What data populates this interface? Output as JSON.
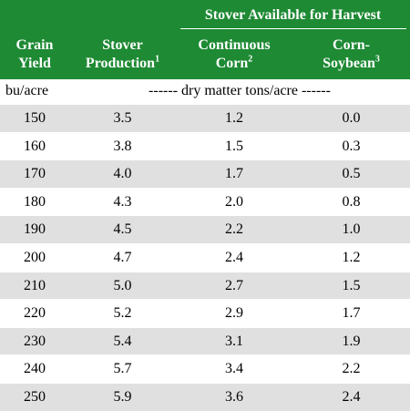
{
  "header": {
    "span_title": "Stover Available for Harvest",
    "col1": [
      "Grain",
      "Yield"
    ],
    "col2": [
      "Stover",
      "Production",
      "1"
    ],
    "col3": [
      "Continuous",
      "Corn",
      "2"
    ],
    "col4": [
      "Corn-",
      "Soybean",
      "3"
    ]
  },
  "units": {
    "yield_unit": "bu/acre",
    "tons_unit": "------ dry matter tons/acre ------"
  },
  "rows": [
    [
      "150",
      "3.5",
      "1.2",
      "0.0"
    ],
    [
      "160",
      "3.8",
      "1.5",
      "0.3"
    ],
    [
      "170",
      "4.0",
      "1.7",
      "0.5"
    ],
    [
      "180",
      "4.3",
      "2.0",
      "0.8"
    ],
    [
      "190",
      "4.5",
      "2.2",
      "1.0"
    ],
    [
      "200",
      "4.7",
      "2.4",
      "1.2"
    ],
    [
      "210",
      "5.0",
      "2.7",
      "1.5"
    ],
    [
      "220",
      "5.2",
      "2.9",
      "1.7"
    ],
    [
      "230",
      "5.4",
      "3.1",
      "1.9"
    ],
    [
      "240",
      "5.7",
      "3.4",
      "2.2"
    ],
    [
      "250",
      "5.9",
      "3.6",
      "2.4"
    ]
  ],
  "colors": {
    "header_bg": "#1e8a34",
    "shade_bg": "#e0e0e0"
  }
}
